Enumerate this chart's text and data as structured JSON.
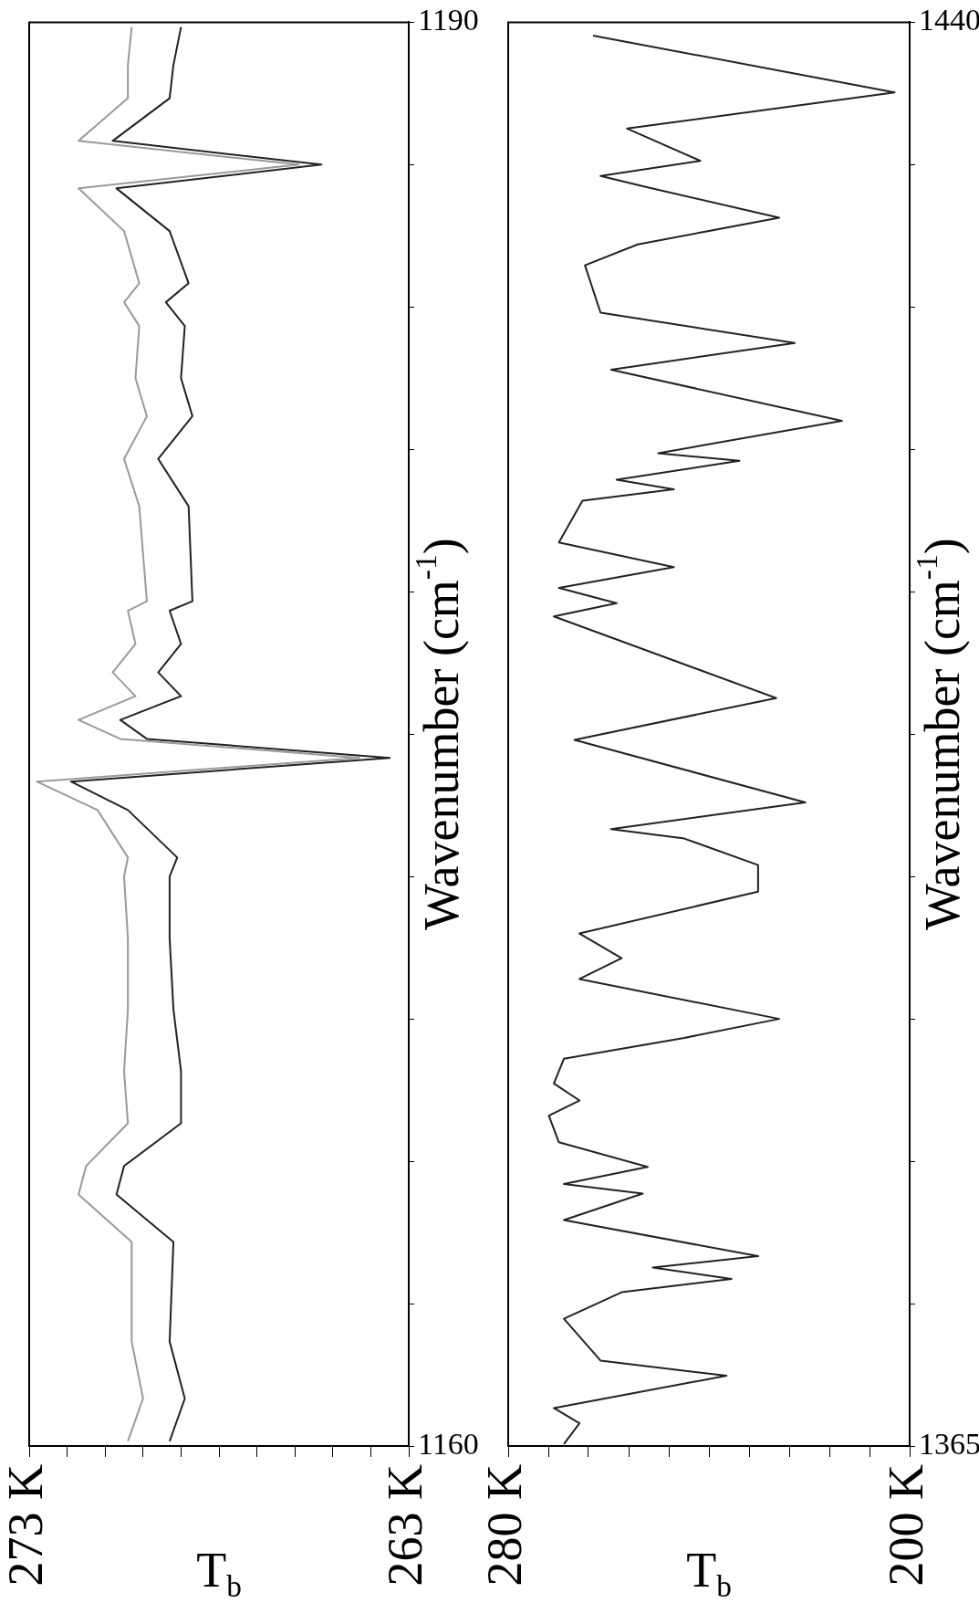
{
  "chart_data": [
    {
      "type": "line",
      "xlabel": "T$_{b}$",
      "ylabel": "Wavenumber (cm$^{-1}$)",
      "xlim": [
        273,
        263
      ],
      "ylim": [
        1160,
        1190
      ],
      "xticks": [
        {
          "value": 273,
          "label": "273 K"
        },
        {
          "value": 272,
          "label": null
        },
        {
          "value": 271,
          "label": null
        },
        {
          "value": 270,
          "label": null
        },
        {
          "value": 269,
          "label": null
        },
        {
          "value": 268,
          "label": null
        },
        {
          "value": 267,
          "label": null
        },
        {
          "value": 266,
          "label": null
        },
        {
          "value": 265,
          "label": null
        },
        {
          "value": 264,
          "label": null
        },
        {
          "value": 263,
          "label": "263 K"
        }
      ],
      "yticks": [
        1160,
        {
          "value": 1163,
          "label": null
        },
        {
          "value": 1166,
          "label": null
        },
        {
          "value": 1169,
          "label": null
        },
        {
          "value": 1172,
          "label": null
        },
        {
          "value": 1175,
          "label": null
        },
        {
          "value": 1178,
          "label": null
        },
        {
          "value": 1181,
          "label": null
        },
        {
          "value": 1184,
          "label": null
        },
        {
          "value": 1187,
          "label": null
        },
        1190
      ],
      "grid": false,
      "legend": false,
      "marker": "none",
      "line_style": "solid",
      "series": [
        {
          "color": "#9a9a9a",
          "x": [
            270.4,
            270.0,
            270.3,
            270.3,
            271.7,
            271.5,
            270.4,
            270.5,
            270.4,
            270.4,
            270.5,
            270.4,
            271.2,
            272.8,
            264.3,
            270.6,
            271.7,
            270.2,
            270.8,
            270.2,
            270.4,
            269.9,
            270.1,
            270.5,
            269.9,
            270.2,
            270.1,
            270.5,
            270.1,
            270.5,
            271.7,
            265.9,
            271.7,
            270.4,
            270.4,
            270.3
          ],
          "values": [
            1160.1,
            1161.0,
            1162.2,
            1164.3,
            1165.3,
            1165.9,
            1166.8,
            1167.9,
            1169.2,
            1170.7,
            1172.0,
            1172.4,
            1173.4,
            1174.0,
            1174.5,
            1174.9,
            1175.3,
            1175.8,
            1176.3,
            1176.9,
            1177.6,
            1177.8,
            1179.8,
            1180.8,
            1181.7,
            1182.5,
            1183.6,
            1184.1,
            1184.5,
            1185.6,
            1186.5,
            1187.0,
            1187.5,
            1188.4,
            1189.1,
            1189.9
          ]
        },
        {
          "color": "#222222",
          "x": [
            269.3,
            268.9,
            269.3,
            269.2,
            270.7,
            270.5,
            269.0,
            269.0,
            269.2,
            269.3,
            269.3,
            269.1,
            270.4,
            271.9,
            263.5,
            269.9,
            270.6,
            269.0,
            269.6,
            269.0,
            269.3,
            268.7,
            268.8,
            269.6,
            268.7,
            269.0,
            268.9,
            269.4,
            268.8,
            269.3,
            270.7,
            265.3,
            270.8,
            269.3,
            269.2,
            269.0
          ],
          "values": [
            1160.1,
            1161.0,
            1162.2,
            1164.3,
            1165.3,
            1165.9,
            1166.8,
            1167.9,
            1169.2,
            1170.7,
            1172.0,
            1172.4,
            1173.4,
            1174.0,
            1174.5,
            1174.9,
            1175.3,
            1175.8,
            1176.3,
            1176.9,
            1177.6,
            1177.8,
            1179.8,
            1180.8,
            1181.7,
            1182.5,
            1183.6,
            1184.1,
            1184.5,
            1185.6,
            1186.5,
            1187.0,
            1187.5,
            1188.4,
            1189.1,
            1189.9
          ]
        }
      ]
    },
    {
      "type": "line",
      "xlabel": "T$_{b}$",
      "ylabel": "Wavenumber (cm$^{-1}$)",
      "xlim": [
        280,
        200
      ],
      "ylim": [
        1365,
        1440
      ],
      "xticks": [
        {
          "value": 280,
          "label": "280 K"
        },
        {
          "value": 272,
          "label": null
        },
        {
          "value": 264,
          "label": null
        },
        {
          "value": 256,
          "label": null
        },
        {
          "value": 248,
          "label": null
        },
        {
          "value": 240,
          "label": null
        },
        {
          "value": 232,
          "label": null
        },
        {
          "value": 224,
          "label": null
        },
        {
          "value": 216,
          "label": null
        },
        {
          "value": 208,
          "label": null
        },
        {
          "value": 200,
          "label": "200 K"
        }
      ],
      "yticks": [
        1365,
        {
          "value": 1372.5,
          "label": null
        },
        {
          "value": 1380,
          "label": null
        },
        {
          "value": 1387.5,
          "label": null
        },
        {
          "value": 1395,
          "label": null
        },
        {
          "value": 1402.5,
          "label": null
        },
        {
          "value": 1410,
          "label": null
        },
        {
          "value": 1417.5,
          "label": null
        },
        {
          "value": 1425,
          "label": null
        },
        {
          "value": 1432.5,
          "label": null
        },
        1440
      ],
      "grid": false,
      "legend": false,
      "marker": "none",
      "line_style": "solid",
      "series": [
        {
          "color": "#222222",
          "x": [
            268.9,
            265.8,
            270.9,
            236.5,
            261.6,
            268.9,
            257.4,
            235.5,
            251.2,
            230.2,
            268.9,
            253.2,
            268.9,
            252.2,
            269.9,
            271.9,
            265.8,
            270.9,
            268.9,
            244.9,
            226.0,
            265.8,
            257.4,
            265.8,
            230.2,
            230.2,
            244.9,
            259.5,
            220.8,
            266.8,
            226.6,
            270.9,
            258.4,
            269.9,
            247.0,
            269.9,
            265.2,
            247.0,
            258.4,
            233.9,
            250.1,
            213.5,
            259.5,
            222.9,
            261.6,
            264.7,
            254.2,
            226.0,
            252.2,
            261.6,
            241.7,
            256.3,
            203.0,
            263.1
          ],
          "values": [
            1365.1,
            1366.2,
            1367.0,
            1368.7,
            1369.5,
            1371.7,
            1373.1,
            1373.8,
            1374.4,
            1375.0,
            1376.9,
            1378.3,
            1378.8,
            1379.7,
            1381.0,
            1382.4,
            1383.2,
            1384.1,
            1385.4,
            1386.5,
            1387.5,
            1389.6,
            1390.7,
            1392.0,
            1394.2,
            1395.6,
            1397.0,
            1397.5,
            1398.9,
            1402.2,
            1404.4,
            1408.7,
            1409.4,
            1410.2,
            1411.3,
            1412.6,
            1414.8,
            1415.4,
            1415.9,
            1416.9,
            1417.3,
            1419.0,
            1421.7,
            1423.1,
            1424.7,
            1427.2,
            1428.3,
            1429.7,
            1431.3,
            1431.9,
            1432.7,
            1434.4,
            1436.3,
            1439.3
          ]
        }
      ]
    }
  ]
}
